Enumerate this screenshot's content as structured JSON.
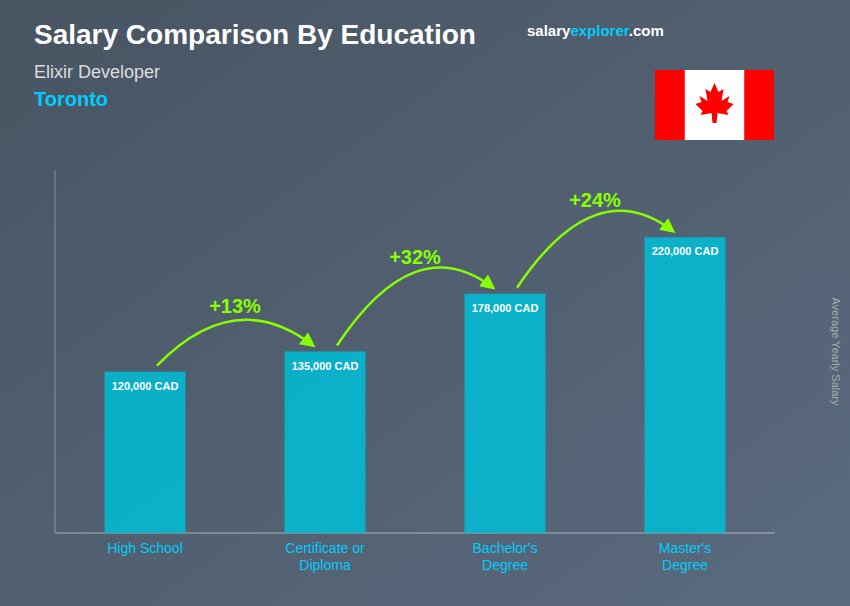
{
  "chart_data": {
    "type": "bar",
    "title": "Salary Comparison By Education",
    "subtitles": [
      "Elixir Developer",
      "Toronto"
    ],
    "watermark": [
      "salary",
      "explorer",
      ".com"
    ],
    "y_label": "Average Yearly Salary",
    "categories": [
      "High School",
      "Certificate or\nDiploma",
      "Bachelor's\nDegree",
      "Master's\nDegree"
    ],
    "values": [
      120000,
      135000,
      178000,
      220000
    ],
    "value_labels": [
      "120,000 CAD",
      "135,000 CAD",
      "178,000 CAD",
      "220,000 CAD"
    ],
    "annotations": [
      "+13%",
      "+32%",
      "+24%"
    ],
    "color": "#00bcd4",
    "ylim": [
      0,
      270000
    ],
    "data_labels": true,
    "tick_labels": "x",
    "grid": false
  }
}
